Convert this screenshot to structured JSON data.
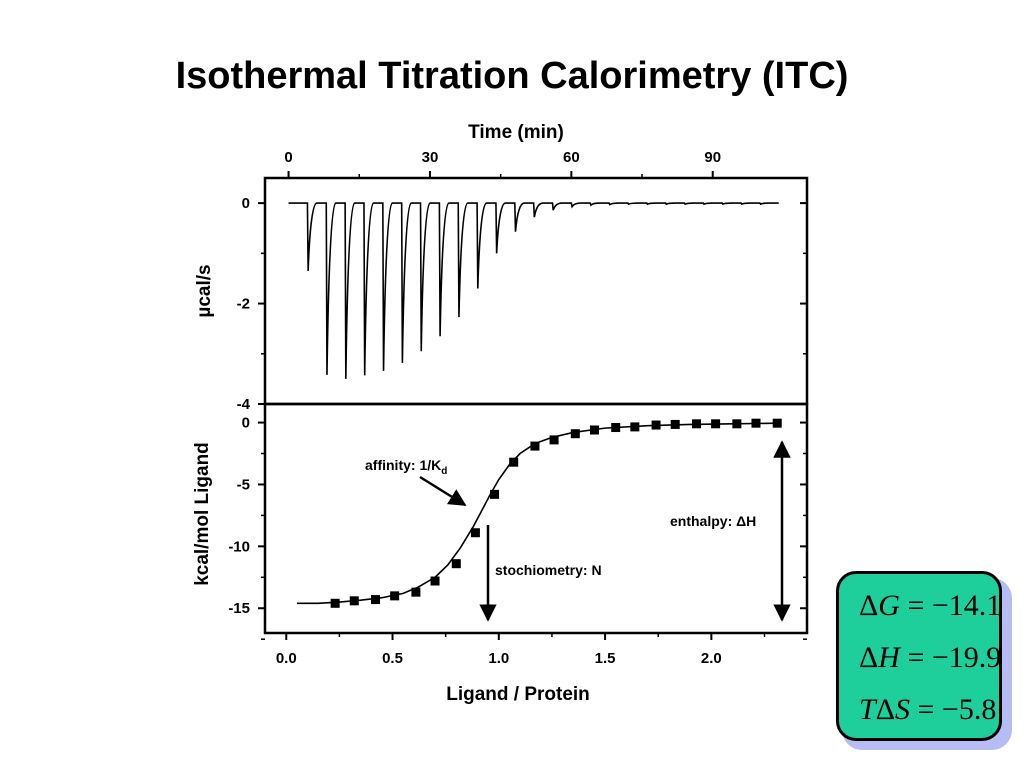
{
  "title": "Isothermal Titration Calorimetry (ITC)",
  "chart_data": [
    {
      "type": "line",
      "x_axis_position": "top",
      "xlabel": "Time (min)",
      "ylabel": "µcal/s",
      "xticks": [
        "0",
        "30",
        "60",
        "90"
      ],
      "xtick_values": [
        0,
        30,
        60,
        90
      ],
      "yticks": [
        "0",
        "-2",
        "-4"
      ],
      "ytick_values": [
        0,
        -2,
        -4
      ],
      "xlim": [
        -5,
        110
      ],
      "ylim": [
        -4,
        0.5
      ],
      "baseline": 0,
      "baseline_range": [
        0,
        104
      ],
      "series": [
        {
          "injection_times": [
            4,
            8,
            12,
            16,
            20,
            24,
            28,
            32,
            36,
            40,
            44,
            48,
            52,
            56,
            60,
            64,
            68,
            72,
            76,
            80,
            84,
            88,
            92,
            96,
            100
          ],
          "peak_values": [
            -1.35,
            -3.42,
            -3.5,
            -3.43,
            -3.34,
            -3.18,
            -2.95,
            -2.65,
            -2.27,
            -1.7,
            -1.0,
            -0.57,
            -0.28,
            -0.14,
            -0.07,
            -0.04,
            -0.03,
            -0.02,
            -0.02,
            -0.02,
            -0.02,
            -0.02,
            -0.02,
            -0.02,
            -0.02
          ]
        }
      ]
    },
    {
      "type": "scatter",
      "xlabel": "Ligand / Protein",
      "ylabel": "kcal/mol Ligand",
      "xticks": [
        "0.0",
        "0.5",
        "1.0",
        "1.5",
        "2.0"
      ],
      "xtick_values": [
        0,
        0.5,
        1.0,
        1.5,
        2.0
      ],
      "yticks": [
        "0",
        "-5",
        "-10",
        "-15"
      ],
      "ytick_values": [
        0,
        -5,
        -10,
        -15
      ],
      "xlim": [
        -0.1,
        2.45
      ],
      "ylim": [
        -17,
        1.5
      ],
      "series": [
        {
          "x": [
            0.23,
            0.32,
            0.42,
            0.51,
            0.61,
            0.7,
            0.8,
            0.89,
            0.98,
            1.07,
            1.17,
            1.26,
            1.36,
            1.45,
            1.55,
            1.64,
            1.74,
            1.83,
            1.93,
            2.02,
            2.12,
            2.21,
            2.31
          ],
          "y": [
            -14.6,
            -14.4,
            -14.3,
            -14.0,
            -13.7,
            -12.8,
            -11.4,
            -8.9,
            -5.8,
            -3.2,
            -1.9,
            -1.4,
            -0.9,
            -0.6,
            -0.4,
            -0.35,
            -0.2,
            -0.15,
            -0.1,
            -0.1,
            -0.1,
            -0.05,
            -0.05
          ]
        }
      ],
      "fit_curve": {
        "x": [
          0.05,
          0.15,
          0.25,
          0.35,
          0.45,
          0.55,
          0.62,
          0.7,
          0.76,
          0.82,
          0.88,
          0.92,
          0.96,
          1.0,
          1.05,
          1.1,
          1.17,
          1.25,
          1.35,
          1.5,
          1.7,
          1.9,
          2.1,
          2.31
        ],
        "y": [
          -14.6,
          -14.6,
          -14.5,
          -14.35,
          -14.15,
          -13.8,
          -13.3,
          -12.5,
          -11.5,
          -10.1,
          -8.4,
          -7.1,
          -5.8,
          -4.6,
          -3.4,
          -2.5,
          -1.7,
          -1.2,
          -0.8,
          -0.45,
          -0.25,
          -0.15,
          -0.1,
          -0.05
        ]
      },
      "annotations": [
        {
          "name": "affinity",
          "text": "affinity: 1/K",
          "subscript": "d"
        },
        {
          "name": "stoichiometry",
          "text": "stochiometry: N"
        },
        {
          "name": "enthalpy",
          "text": "enthalpy: ΔH"
        }
      ]
    }
  ],
  "thermo": {
    "g_symbol": "G",
    "g_value": "= −14.1",
    "h_symbol": "H",
    "h_value": "= −19.9",
    "ts_symbol": "T",
    "ts_delta": "Δ",
    "ts_s": "S",
    "ts_value": "= −5.8",
    "delta": "Δ",
    "box_color": "#1ecf9c"
  }
}
